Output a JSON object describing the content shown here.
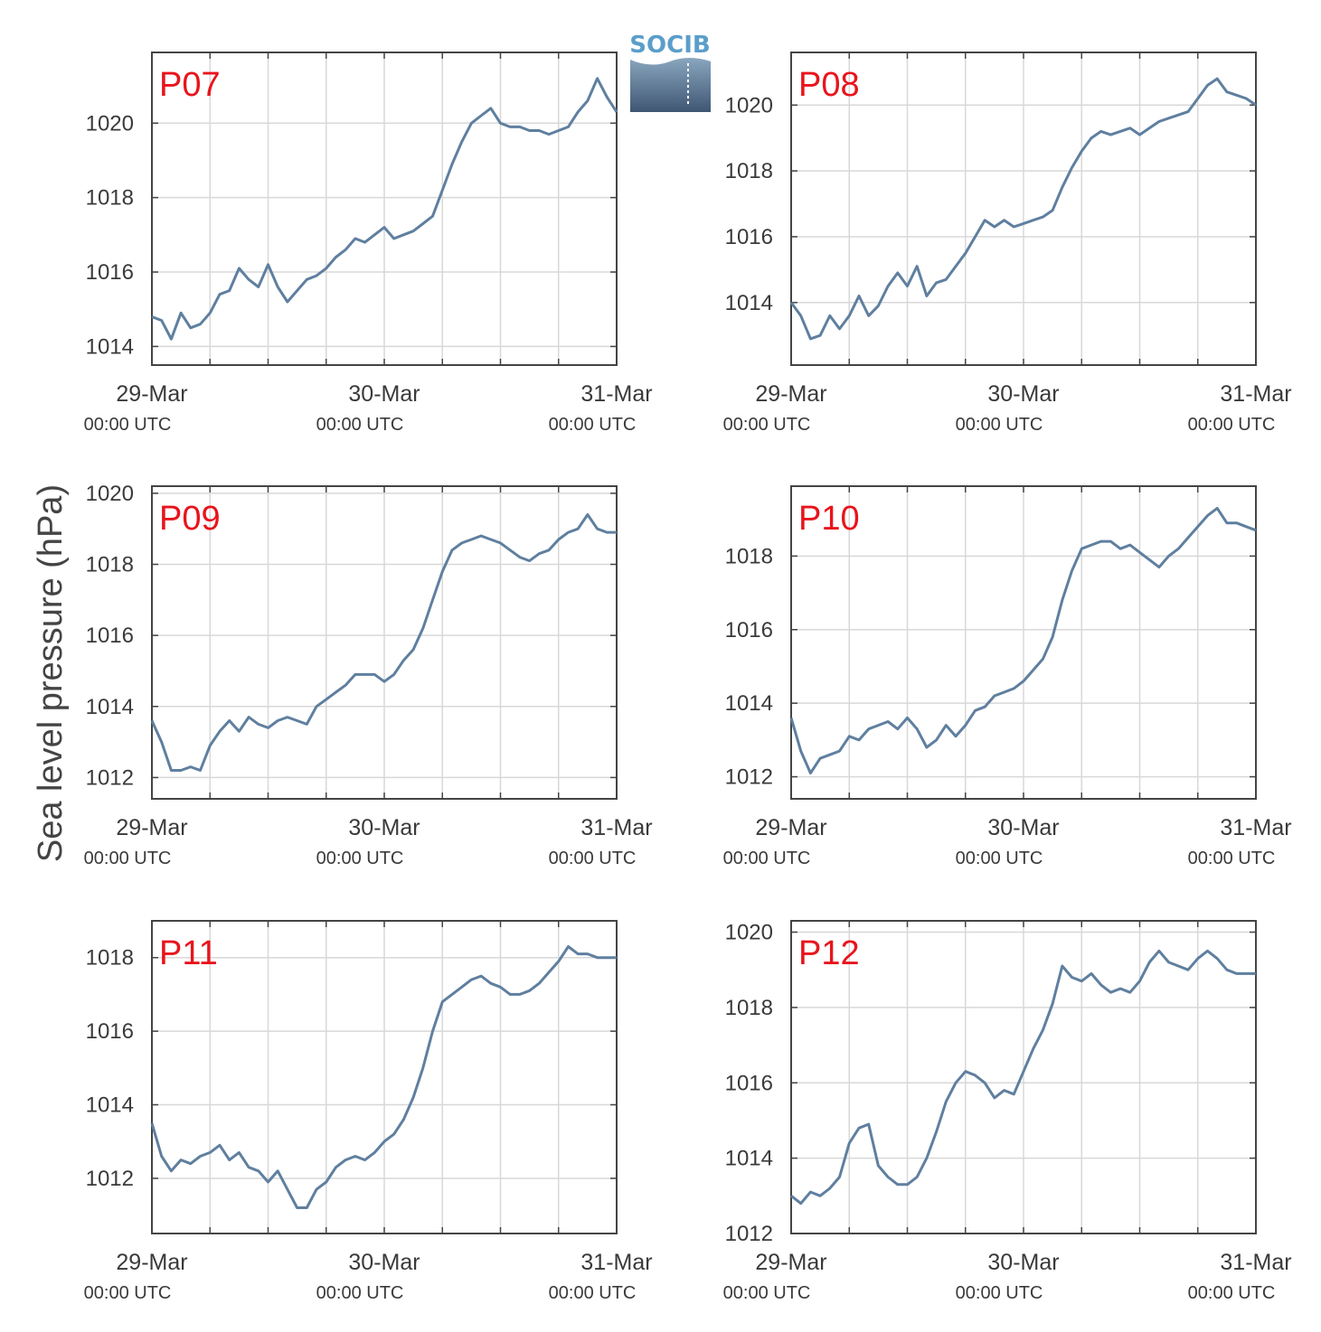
{
  "ylabel": "Sea level pressure (hPa)",
  "logo_text": "SOCIB",
  "x_ticks": [
    {
      "date": "29-Mar",
      "time": "00:00 UTC"
    },
    {
      "date": "30-Mar",
      "time": "00:00 UTC"
    },
    {
      "date": "31-Mar",
      "time": "00:00 UTC"
    }
  ],
  "colors": {
    "line": "#5f7f9f",
    "label": "#e8141c",
    "grid": "#d8d8d8",
    "axis": "#444444"
  },
  "chart_data": [
    {
      "type": "line",
      "title": "P07",
      "x_unit": "hours since 29-Mar 00:00 UTC",
      "xlim": [
        0,
        48
      ],
      "ylim": [
        1013.5,
        1021.9
      ],
      "y_ticks": [
        1014,
        1016,
        1018,
        1020
      ],
      "x": [
        0,
        1,
        2,
        3,
        4,
        5,
        6,
        7,
        8,
        9,
        10,
        11,
        12,
        13,
        14,
        15,
        16,
        17,
        18,
        19,
        20,
        21,
        22,
        23,
        24,
        25,
        26,
        27,
        28,
        29,
        30,
        31,
        32,
        33,
        34,
        35,
        36,
        37,
        38,
        39,
        40,
        41,
        42,
        43,
        44,
        45,
        46,
        47,
        48
      ],
      "values": [
        1014.8,
        1014.7,
        1014.2,
        1014.9,
        1014.5,
        1014.6,
        1014.9,
        1015.4,
        1015.5,
        1016.1,
        1015.8,
        1015.6,
        1016.2,
        1015.6,
        1015.2,
        1015.5,
        1015.8,
        1015.9,
        1016.1,
        1016.4,
        1016.6,
        1016.9,
        1016.8,
        1017.0,
        1017.2,
        1016.9,
        1017.0,
        1017.1,
        1017.3,
        1017.5,
        1018.2,
        1018.9,
        1019.5,
        1020.0,
        1020.2,
        1020.4,
        1020.0,
        1019.9,
        1019.9,
        1019.8,
        1019.8,
        1019.7,
        1019.8,
        1019.9,
        1020.3,
        1020.6,
        1021.2,
        1020.7,
        1020.3
      ]
    },
    {
      "type": "line",
      "title": "P08",
      "x_unit": "hours since 29-Mar 00:00 UTC",
      "xlim": [
        0,
        48
      ],
      "ylim": [
        1012.1,
        1021.6
      ],
      "y_ticks": [
        1014,
        1016,
        1018,
        1020
      ],
      "x": [
        0,
        1,
        2,
        3,
        4,
        5,
        6,
        7,
        8,
        9,
        10,
        11,
        12,
        13,
        14,
        15,
        16,
        17,
        18,
        19,
        20,
        21,
        22,
        23,
        24,
        25,
        26,
        27,
        28,
        29,
        30,
        31,
        32,
        33,
        34,
        35,
        36,
        37,
        38,
        39,
        40,
        41,
        42,
        43,
        44,
        45,
        46,
        47,
        48
      ],
      "values": [
        1014.0,
        1013.6,
        1012.9,
        1013.0,
        1013.6,
        1013.2,
        1013.6,
        1014.2,
        1013.6,
        1013.9,
        1014.5,
        1014.9,
        1014.5,
        1015.1,
        1014.2,
        1014.6,
        1014.7,
        1015.1,
        1015.5,
        1016.0,
        1016.5,
        1016.3,
        1016.5,
        1016.3,
        1016.4,
        1016.5,
        1016.6,
        1016.8,
        1017.5,
        1018.1,
        1018.6,
        1019.0,
        1019.2,
        1019.1,
        1019.2,
        1019.3,
        1019.1,
        1019.3,
        1019.5,
        1019.6,
        1019.7,
        1019.8,
        1020.2,
        1020.6,
        1020.8,
        1020.4,
        1020.3,
        1020.2,
        1020.0
      ]
    },
    {
      "type": "line",
      "title": "P09",
      "x_unit": "hours since 29-Mar 00:00 UTC",
      "xlim": [
        0,
        48
      ],
      "ylim": [
        1011.4,
        1020.2
      ],
      "y_ticks": [
        1012,
        1014,
        1016,
        1018,
        1020
      ],
      "x": [
        0,
        1,
        2,
        3,
        4,
        5,
        6,
        7,
        8,
        9,
        10,
        11,
        12,
        13,
        14,
        15,
        16,
        17,
        18,
        19,
        20,
        21,
        22,
        23,
        24,
        25,
        26,
        27,
        28,
        29,
        30,
        31,
        32,
        33,
        34,
        35,
        36,
        37,
        38,
        39,
        40,
        41,
        42,
        43,
        44,
        45,
        46,
        47,
        48
      ],
      "values": [
        1013.6,
        1013.0,
        1012.2,
        1012.2,
        1012.3,
        1012.2,
        1012.9,
        1013.3,
        1013.6,
        1013.3,
        1013.7,
        1013.5,
        1013.4,
        1013.6,
        1013.7,
        1013.6,
        1013.5,
        1014.0,
        1014.2,
        1014.4,
        1014.6,
        1014.9,
        1014.9,
        1014.9,
        1014.7,
        1014.9,
        1015.3,
        1015.6,
        1016.2,
        1017.0,
        1017.8,
        1018.4,
        1018.6,
        1018.7,
        1018.8,
        1018.7,
        1018.6,
        1018.4,
        1018.2,
        1018.1,
        1018.3,
        1018.4,
        1018.7,
        1018.9,
        1019.0,
        1019.4,
        1019.0,
        1018.9,
        1018.9
      ]
    },
    {
      "type": "line",
      "title": "P10",
      "x_unit": "hours since 29-Mar 00:00 UTC",
      "xlim": [
        0,
        48
      ],
      "ylim": [
        1011.4,
        1019.9
      ],
      "y_ticks": [
        1012,
        1014,
        1016,
        1018
      ],
      "x": [
        0,
        1,
        2,
        3,
        4,
        5,
        6,
        7,
        8,
        9,
        10,
        11,
        12,
        13,
        14,
        15,
        16,
        17,
        18,
        19,
        20,
        21,
        22,
        23,
        24,
        25,
        26,
        27,
        28,
        29,
        30,
        31,
        32,
        33,
        34,
        35,
        36,
        37,
        38,
        39,
        40,
        41,
        42,
        43,
        44,
        45,
        46,
        47,
        48
      ],
      "values": [
        1013.6,
        1012.7,
        1012.1,
        1012.5,
        1012.6,
        1012.7,
        1013.1,
        1013.0,
        1013.3,
        1013.4,
        1013.5,
        1013.3,
        1013.6,
        1013.3,
        1012.8,
        1013.0,
        1013.4,
        1013.1,
        1013.4,
        1013.8,
        1013.9,
        1014.2,
        1014.3,
        1014.4,
        1014.6,
        1014.9,
        1015.2,
        1015.8,
        1016.8,
        1017.6,
        1018.2,
        1018.3,
        1018.4,
        1018.4,
        1018.2,
        1018.3,
        1018.1,
        1017.9,
        1017.7,
        1018.0,
        1018.2,
        1018.5,
        1018.8,
        1019.1,
        1019.3,
        1018.9,
        1018.9,
        1018.8,
        1018.7
      ]
    },
    {
      "type": "line",
      "title": "P11",
      "x_unit": "hours since 29-Mar 00:00 UTC",
      "xlim": [
        0,
        48
      ],
      "ylim": [
        1010.5,
        1019.0
      ],
      "y_ticks": [
        1012,
        1014,
        1016,
        1018
      ],
      "x": [
        0,
        1,
        2,
        3,
        4,
        5,
        6,
        7,
        8,
        9,
        10,
        11,
        12,
        13,
        14,
        15,
        16,
        17,
        18,
        19,
        20,
        21,
        22,
        23,
        24,
        25,
        26,
        27,
        28,
        29,
        30,
        31,
        32,
        33,
        34,
        35,
        36,
        37,
        38,
        39,
        40,
        41,
        42,
        43,
        44,
        45,
        46,
        47,
        48
      ],
      "values": [
        1013.5,
        1012.6,
        1012.2,
        1012.5,
        1012.4,
        1012.6,
        1012.7,
        1012.9,
        1012.5,
        1012.7,
        1012.3,
        1012.2,
        1011.9,
        1012.2,
        1011.7,
        1011.2,
        1011.2,
        1011.7,
        1011.9,
        1012.3,
        1012.5,
        1012.6,
        1012.5,
        1012.7,
        1013.0,
        1013.2,
        1013.6,
        1014.2,
        1015.0,
        1016.0,
        1016.8,
        1017.0,
        1017.2,
        1017.4,
        1017.5,
        1017.3,
        1017.2,
        1017.0,
        1017.0,
        1017.1,
        1017.3,
        1017.6,
        1017.9,
        1018.3,
        1018.1,
        1018.1,
        1018.0,
        1018.0,
        1018.0
      ]
    },
    {
      "type": "line",
      "title": "P12",
      "x_unit": "hours since 29-Mar 00:00 UTC",
      "xlim": [
        0,
        48
      ],
      "ylim": [
        1012.0,
        1020.3
      ],
      "y_ticks": [
        1012,
        1014,
        1016,
        1018,
        1020
      ],
      "x": [
        0,
        1,
        2,
        3,
        4,
        5,
        6,
        7,
        8,
        9,
        10,
        11,
        12,
        13,
        14,
        15,
        16,
        17,
        18,
        19,
        20,
        21,
        22,
        23,
        24,
        25,
        26,
        27,
        28,
        29,
        30,
        31,
        32,
        33,
        34,
        35,
        36,
        37,
        38,
        39,
        40,
        41,
        42,
        43,
        44,
        45,
        46,
        47,
        48
      ],
      "values": [
        1013.0,
        1012.8,
        1013.1,
        1013.0,
        1013.2,
        1013.5,
        1014.4,
        1014.8,
        1014.9,
        1013.8,
        1013.5,
        1013.3,
        1013.3,
        1013.5,
        1014.0,
        1014.7,
        1015.5,
        1016.0,
        1016.3,
        1016.2,
        1016.0,
        1015.6,
        1015.8,
        1015.7,
        1016.3,
        1016.9,
        1017.4,
        1018.1,
        1019.1,
        1018.8,
        1018.7,
        1018.9,
        1018.6,
        1018.4,
        1018.5,
        1018.4,
        1018.7,
        1019.2,
        1019.5,
        1019.2,
        1019.1,
        1019.0,
        1019.3,
        1019.5,
        1019.3,
        1019.0,
        1018.9,
        1018.9,
        1018.9
      ]
    }
  ]
}
